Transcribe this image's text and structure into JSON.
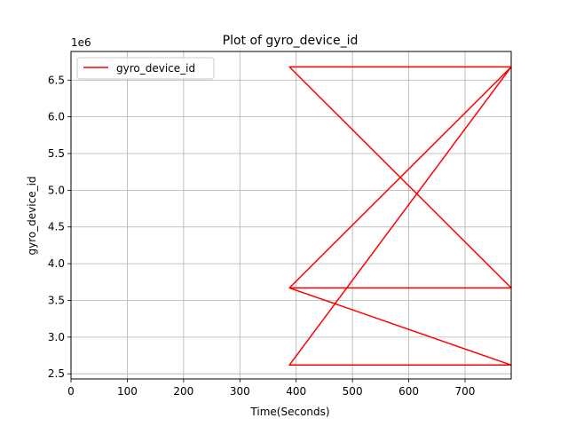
{
  "chart_data": {
    "type": "line",
    "title": "Plot of gyro_device_id",
    "xlabel": "Time(Seconds)",
    "ylabel": "gyro_device_id",
    "y_offset_label": "1e6",
    "xlim": [
      0,
      782
    ],
    "ylim": [
      2.43,
      6.89
    ],
    "y_scale_factor": 1000000,
    "xticks": [
      0,
      100,
      200,
      300,
      400,
      500,
      600,
      700
    ],
    "xtick_labels": [
      "0",
      "100",
      "200",
      "300",
      "400",
      "500",
      "600",
      "700"
    ],
    "yticks": [
      2.5,
      3.0,
      3.5,
      4.0,
      4.5,
      5.0,
      5.5,
      6.0,
      6.5
    ],
    "ytick_labels": [
      "2.5",
      "3.0",
      "3.5",
      "4.0",
      "4.5",
      "5.0",
      "5.5",
      "6.0",
      "6.5"
    ],
    "grid": true,
    "legend_position": "upper-left",
    "series": [
      {
        "name": "gyro_device_id",
        "color": "#ff0000",
        "x": [
          388,
          782,
          388,
          782,
          388,
          782,
          388,
          782,
          388,
          782,
          388,
          782,
          388,
          782,
          388,
          782
        ],
        "y": [
          6.68,
          6.68,
          6.68,
          3.67,
          3.67,
          3.67,
          3.67,
          2.62,
          2.62,
          2.62,
          2.62,
          6.68,
          2.62,
          6.68,
          3.67,
          6.68
        ]
      }
    ]
  }
}
